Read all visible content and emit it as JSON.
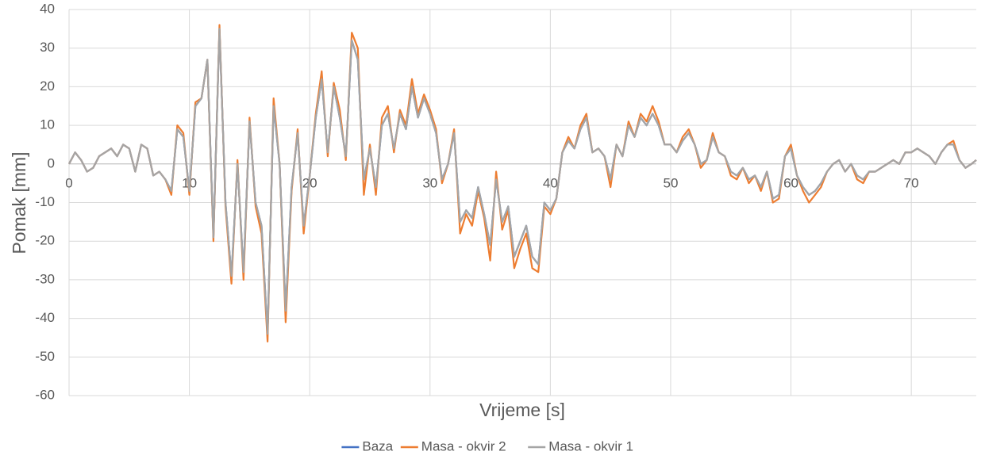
{
  "chart_data": {
    "type": "line",
    "x_label": "Vrijeme [s]",
    "y_label": "Pomak [mm]",
    "xlim": [
      0,
      75.4
    ],
    "xticks": [
      0,
      10,
      20,
      30,
      40,
      50,
      60,
      70
    ],
    "ylim": [
      -60,
      40
    ],
    "yticks": [
      -60,
      -50,
      -40,
      -30,
      -20,
      -10,
      0,
      10,
      20,
      30,
      40
    ],
    "grid": true,
    "legend": "bottom",
    "x": [
      0,
      0.5,
      1,
      1.5,
      2,
      2.5,
      3,
      3.5,
      4,
      4.5,
      5,
      5.5,
      6,
      6.5,
      7,
      7.5,
      8,
      8.5,
      9,
      9.5,
      10,
      10.5,
      11,
      11.5,
      12,
      12.5,
      13,
      13.5,
      14,
      14.5,
      15,
      15.5,
      16,
      16.5,
      17,
      17.5,
      18,
      18.5,
      19,
      19.5,
      20,
      20.5,
      21,
      21.5,
      22,
      22.5,
      23,
      23.5,
      24,
      24.5,
      25,
      25.5,
      26,
      26.5,
      27,
      27.5,
      28,
      28.5,
      29,
      29.5,
      30,
      30.5,
      31,
      31.5,
      32,
      32.5,
      33,
      33.5,
      34,
      34.5,
      35,
      35.5,
      36,
      36.5,
      37,
      37.5,
      38,
      38.5,
      39,
      39.5,
      40,
      40.5,
      41,
      41.5,
      42,
      42.5,
      43,
      43.5,
      44,
      44.5,
      45,
      45.5,
      46,
      46.5,
      47,
      47.5,
      48,
      48.5,
      49,
      49.5,
      50,
      50.5,
      51,
      51.5,
      52,
      52.5,
      53,
      53.5,
      54,
      54.5,
      55,
      55.5,
      56,
      56.5,
      57,
      57.5,
      58,
      58.5,
      59,
      59.5,
      60,
      60.5,
      61,
      61.5,
      62,
      62.5,
      63,
      63.5,
      64,
      64.5,
      65,
      65.5,
      66,
      66.5,
      67,
      67.5,
      68,
      68.5,
      69,
      69.5,
      70,
      70.5,
      71,
      71.5,
      72,
      72.5,
      73,
      73.5,
      74,
      74.5,
      75,
      75.4
    ],
    "series": [
      {
        "name": "Baza",
        "color": "#4472c4",
        "values": [
          0,
          3,
          1,
          -2,
          -1,
          2,
          3,
          4,
          2,
          5,
          4,
          -2,
          5,
          4,
          -3,
          -2,
          -4,
          -7,
          9,
          7,
          -7,
          15,
          17,
          27,
          -19,
          35,
          -10,
          -29,
          0,
          -28,
          11,
          -10,
          -16,
          -44,
          15,
          0,
          -38,
          -6,
          8,
          -16,
          -3,
          12,
          22,
          3,
          20,
          12,
          2,
          32,
          27,
          -4,
          4,
          -6,
          10,
          13,
          4,
          13,
          9,
          20,
          12,
          17,
          13,
          8,
          -4,
          0,
          8,
          -15,
          -12,
          -14,
          -6,
          -13,
          -21,
          -4,
          -15,
          -11,
          -24,
          -20,
          -16,
          -24,
          -26,
          -10,
          -12,
          -9,
          3,
          6,
          4,
          9,
          12,
          3,
          4,
          2,
          -4,
          5,
          2,
          10,
          7,
          12,
          10,
          13,
          10,
          5,
          5,
          3,
          6,
          8,
          5,
          0,
          1,
          7,
          3,
          2,
          -2,
          -3,
          -1,
          -4,
          -3,
          -6,
          -2,
          -9,
          -8,
          2,
          4,
          -3,
          -6,
          -8,
          -7,
          -5,
          -2,
          0,
          1,
          -2,
          0,
          -3,
          -4,
          -2,
          -2,
          -1,
          0,
          1,
          0,
          3,
          3,
          4,
          3,
          2,
          0,
          3,
          5,
          5,
          1,
          -1,
          0,
          1
        ]
      },
      {
        "name": "Masa - okvir 2",
        "color": "#ed7d31",
        "values": [
          0,
          3,
          1,
          -2,
          -1,
          2,
          3,
          4,
          2,
          5,
          4,
          -2,
          5,
          4,
          -3,
          -2,
          -4,
          -8,
          10,
          8,
          -8,
          16,
          17,
          27,
          -20,
          36,
          -11,
          -31,
          1,
          -30,
          12,
          -11,
          -18,
          -46,
          17,
          0,
          -41,
          -7,
          9,
          -18,
          -3,
          13,
          24,
          2,
          21,
          14,
          1,
          34,
          30,
          -8,
          5,
          -8,
          12,
          15,
          3,
          14,
          10,
          22,
          13,
          18,
          14,
          9,
          -5,
          0,
          9,
          -18,
          -13,
          -16,
          -7,
          -14,
          -25,
          -2,
          -17,
          -12,
          -27,
          -22,
          -18,
          -27,
          -28,
          -11,
          -13,
          -9,
          3,
          7,
          4,
          10,
          13,
          3,
          4,
          2,
          -6,
          5,
          2,
          11,
          7,
          13,
          11,
          15,
          11,
          5,
          5,
          3,
          7,
          9,
          5,
          -1,
          1,
          8,
          3,
          2,
          -3,
          -4,
          -1,
          -5,
          -3,
          -7,
          -2,
          -10,
          -9,
          2,
          5,
          -3,
          -7,
          -10,
          -8,
          -6,
          -2,
          0,
          1,
          -2,
          0,
          -4,
          -5,
          -2,
          -2,
          -1,
          0,
          1,
          0,
          3,
          3,
          4,
          3,
          2,
          0,
          3,
          5,
          6,
          1,
          -1,
          0,
          1
        ]
      },
      {
        "name": "Masa - okvir 1",
        "color": "#a5a5a5",
        "values": [
          0,
          3,
          1,
          -2,
          -1,
          2,
          3,
          4,
          2,
          5,
          4,
          -2,
          5,
          4,
          -3,
          -2,
          -4,
          -7,
          9,
          7,
          -7,
          15,
          17,
          27,
          -19,
          35,
          -10,
          -29,
          0,
          -28,
          11,
          -10,
          -16,
          -44,
          15,
          0,
          -38,
          -6,
          8,
          -16,
          -3,
          12,
          22,
          3,
          20,
          12,
          2,
          32,
          27,
          -4,
          4,
          -6,
          10,
          13,
          4,
          13,
          9,
          20,
          12,
          17,
          13,
          8,
          -4,
          0,
          8,
          -15,
          -12,
          -14,
          -6,
          -13,
          -21,
          -4,
          -15,
          -11,
          -24,
          -20,
          -16,
          -24,
          -26,
          -10,
          -12,
          -9,
          3,
          6,
          4,
          9,
          12,
          3,
          4,
          2,
          -4,
          5,
          2,
          10,
          7,
          12,
          10,
          13,
          10,
          5,
          5,
          3,
          6,
          8,
          5,
          0,
          1,
          7,
          3,
          2,
          -2,
          -3,
          -1,
          -4,
          -3,
          -6,
          -2,
          -9,
          -8,
          2,
          4,
          -3,
          -6,
          -8,
          -7,
          -5,
          -2,
          0,
          1,
          -2,
          0,
          -3,
          -4,
          -2,
          -2,
          -1,
          0,
          1,
          0,
          3,
          3,
          4,
          3,
          2,
          0,
          3,
          5,
          5,
          1,
          -1,
          0,
          1
        ]
      }
    ]
  }
}
